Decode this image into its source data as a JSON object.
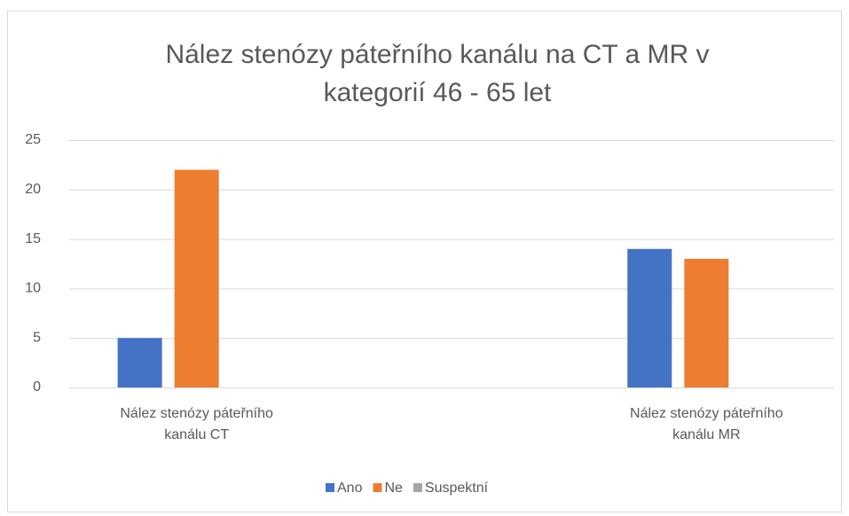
{
  "chart_data": {
    "type": "bar",
    "title": [
      "Nález stenózy páteřního kanálu na CT a MR v",
      "kategorií 46 - 65 let"
    ],
    "categories": [
      "Nález stenózy páteřního kanálu CT",
      null,
      "Nález stenózy páteřního kanálu MR"
    ],
    "series": [
      {
        "name": "Ano",
        "color": "#4472c4",
        "values": [
          5,
          null,
          14
        ]
      },
      {
        "name": "Ne",
        "color": "#ed7d31",
        "values": [
          22,
          null,
          13
        ]
      },
      {
        "name": "Suspektní",
        "color": "#a5a5a5",
        "values": [
          null,
          null,
          null
        ]
      }
    ],
    "ylim": [
      0,
      25
    ],
    "yticks": [
      0,
      5,
      10,
      15,
      20,
      25
    ],
    "grid": true,
    "legend": "bottom"
  }
}
